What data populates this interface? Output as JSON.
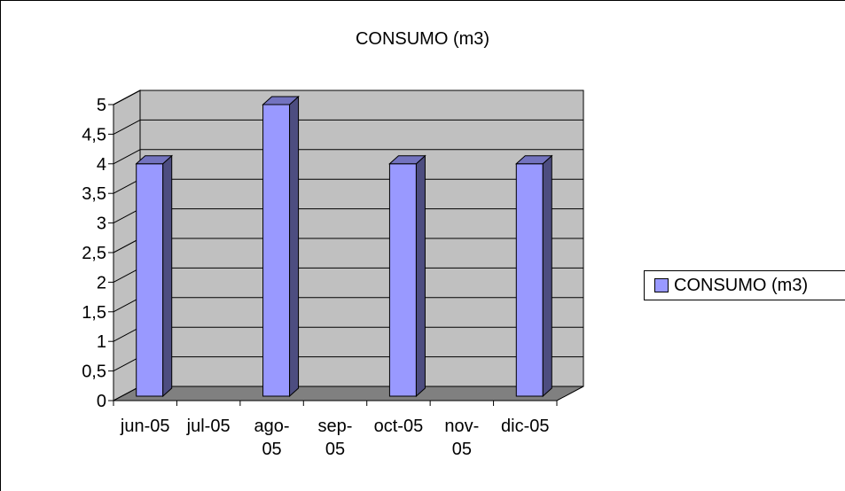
{
  "chart_data": {
    "type": "bar",
    "title": "CONSUMO (m3)",
    "categories": [
      "jun-05",
      "jul-05",
      "ago-05",
      "sep-05",
      "oct-05",
      "nov-05",
      "dic-05"
    ],
    "category_lines": [
      [
        "jun-05"
      ],
      [
        "jul-05"
      ],
      [
        "ago-",
        "05"
      ],
      [
        "sep-",
        "05"
      ],
      [
        "oct-05"
      ],
      [
        "nov-",
        "05"
      ],
      [
        "dic-05"
      ]
    ],
    "series": [
      {
        "name": "CONSUMO (m3)",
        "values": [
          4,
          null,
          5,
          null,
          4,
          null,
          4
        ],
        "color": "#9999ff"
      }
    ],
    "ylim": [
      0,
      5
    ],
    "yticks": [
      "0",
      "0,5",
      "1",
      "1,5",
      "2",
      "2,5",
      "3",
      "3,5",
      "4",
      "4,5",
      "5"
    ],
    "grid": true,
    "legend": "right",
    "wall_color": "#c0c0c0",
    "floor_color": "#808080"
  }
}
